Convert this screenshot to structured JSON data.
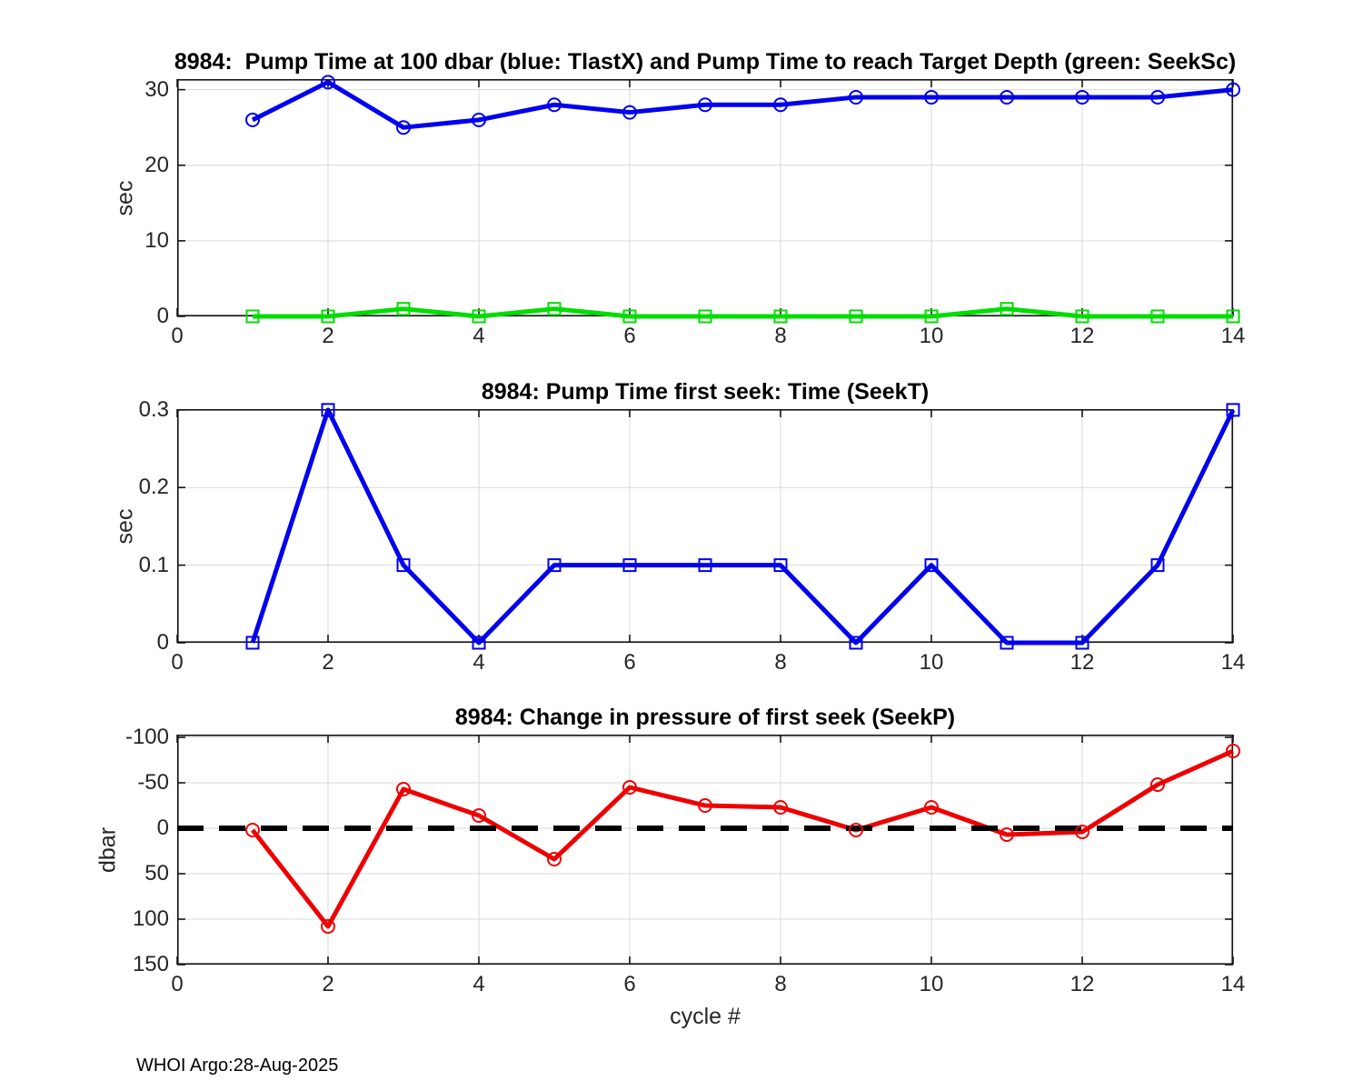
{
  "figure": {
    "footer": "WHOI Argo:28-Aug-2025",
    "xlabel": "cycle #",
    "background": "#ffffff"
  },
  "style": {
    "grid_color": "#d9d9d9",
    "axis_color": "#141414",
    "tick_text_color": "#262626",
    "blue": "#0000ee",
    "green": "#00dd00",
    "red": "#ee0000",
    "zero_line_color": "#000000"
  },
  "chart_data": [
    {
      "type": "line",
      "title": "8984:  Pump Time at 100 dbar (blue: TlastX) and Pump Time to reach Target Depth (green: SeekSc)",
      "ylabel": "sec",
      "x": [
        1,
        2,
        3,
        4,
        5,
        6,
        7,
        8,
        9,
        10,
        11,
        12,
        13,
        14
      ],
      "series": [
        {
          "name": "TlastX",
          "color": "#0000ee",
          "marker": "circle",
          "values": [
            26,
            31,
            25,
            26,
            28,
            27,
            28,
            28,
            29,
            29,
            29,
            29,
            29,
            30
          ]
        },
        {
          "name": "SeekSc",
          "color": "#00dd00",
          "marker": "square",
          "values": [
            0,
            0,
            1,
            0,
            1,
            0,
            0,
            0,
            0,
            0,
            1,
            0,
            0,
            0
          ]
        }
      ],
      "xlim": [
        0,
        14
      ],
      "ylim": [
        0,
        31.4
      ],
      "xticks": [
        0,
        2,
        4,
        6,
        8,
        10,
        12,
        14
      ],
      "yticks": [
        0,
        10,
        20,
        30
      ],
      "grid": true,
      "y_reversed": false,
      "zero_line": false
    },
    {
      "type": "line",
      "title": "8984: Pump Time first seek: Time (SeekT)",
      "ylabel": "sec",
      "x": [
        1,
        2,
        3,
        4,
        5,
        6,
        7,
        8,
        9,
        10,
        11,
        12,
        13,
        14
      ],
      "series": [
        {
          "name": "SeekT",
          "color": "#0000ee",
          "marker": "square",
          "values": [
            0,
            0.3,
            0.1,
            0,
            0.1,
            0.1,
            0.1,
            0.1,
            0,
            0.1,
            0,
            0,
            0.1,
            0.3
          ]
        }
      ],
      "xlim": [
        0,
        14
      ],
      "ylim": [
        0,
        0.301
      ],
      "xticks": [
        0,
        2,
        4,
        6,
        8,
        10,
        12,
        14
      ],
      "yticks": [
        0,
        0.1,
        0.2,
        0.3
      ],
      "grid": true,
      "y_reversed": false,
      "zero_line": false
    },
    {
      "type": "line",
      "title": "8984: Change in pressure of first seek (SeekP)",
      "ylabel": "dbar",
      "x": [
        1,
        2,
        3,
        4,
        5,
        6,
        7,
        8,
        9,
        10,
        11,
        12,
        13,
        14
      ],
      "series": [
        {
          "name": "SeekP",
          "color": "#ee0000",
          "marker": "circle",
          "values": [
            2,
            108,
            -43,
            -14,
            34,
            -45,
            -25,
            -23,
            2,
            -23,
            7,
            4,
            -48,
            -85
          ]
        }
      ],
      "xlim": [
        0,
        14
      ],
      "ylim": [
        -103,
        150
      ],
      "xticks": [
        0,
        2,
        4,
        6,
        8,
        10,
        12,
        14
      ],
      "yticks": [
        -100,
        -50,
        0,
        50,
        100,
        150
      ],
      "grid": true,
      "y_reversed": true,
      "zero_line": true
    }
  ]
}
